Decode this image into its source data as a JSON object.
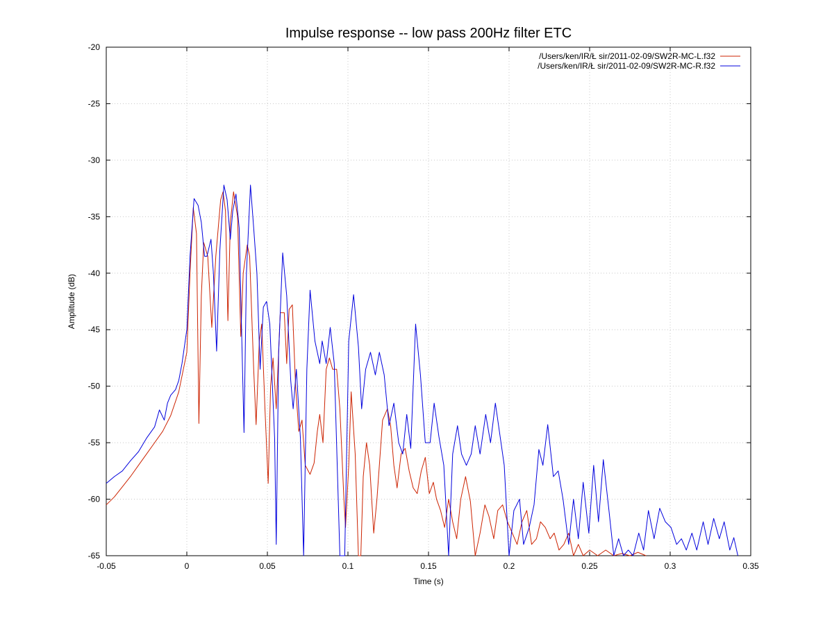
{
  "chart_data": {
    "type": "line",
    "title": "Impulse response -- low pass 200Hz filter ETC",
    "xlabel": "Time (s)",
    "ylabel": "Amplitude (dB)",
    "xlim": [
      -0.05,
      0.35
    ],
    "ylim": [
      -65,
      -20
    ],
    "x_ticks": [
      -0.05,
      0,
      0.05,
      0.1,
      0.15,
      0.2,
      0.25,
      0.3,
      0.35
    ],
    "x_tick_labels": [
      "-0.05",
      "0",
      "0.05",
      "0.1",
      "0.15",
      "0.2",
      "0.25",
      "0.3",
      "0.35"
    ],
    "y_ticks": [
      -20,
      -25,
      -30,
      -35,
      -40,
      -45,
      -50,
      -55,
      -60,
      -65
    ],
    "y_tick_labels": [
      "-20",
      "-25",
      "-30",
      "-35",
      "-40",
      "-45",
      "-50",
      "-55",
      "-60",
      "-65"
    ],
    "grid": true,
    "legend_position": "top-right",
    "series": [
      {
        "name": "/Users/ken/IR/Ł     sir/2011-02-09/SW2R-MC-L.f32",
        "color": "#cc2200",
        "points": [
          [
            -0.05,
            -60.5
          ],
          [
            -0.045,
            -59.8
          ],
          [
            -0.04,
            -58.9
          ],
          [
            -0.035,
            -58.0
          ],
          [
            -0.03,
            -57.0
          ],
          [
            -0.025,
            -56.0
          ],
          [
            -0.02,
            -55.0
          ],
          [
            -0.015,
            -54.0
          ],
          [
            -0.01,
            -52.6
          ],
          [
            -0.005,
            -50.5
          ],
          [
            0.0,
            -47.0
          ],
          [
            0.002,
            -40.0
          ],
          [
            0.004,
            -34.2
          ],
          [
            0.006,
            -36.5
          ],
          [
            0.0075,
            -53.3
          ],
          [
            0.009,
            -42.0
          ],
          [
            0.0105,
            -37.3
          ],
          [
            0.013,
            -38.5
          ],
          [
            0.0155,
            -44.8
          ],
          [
            0.018,
            -38.5
          ],
          [
            0.021,
            -33.5
          ],
          [
            0.0225,
            -32.8
          ],
          [
            0.024,
            -34.5
          ],
          [
            0.0255,
            -44.2
          ],
          [
            0.027,
            -35.5
          ],
          [
            0.029,
            -32.8
          ],
          [
            0.0315,
            -35.0
          ],
          [
            0.0335,
            -45.6
          ],
          [
            0.035,
            -40.0
          ],
          [
            0.0375,
            -37.5
          ],
          [
            0.039,
            -38.5
          ],
          [
            0.0415,
            -48.5
          ],
          [
            0.043,
            -53.4
          ],
          [
            0.045,
            -46.0
          ],
          [
            0.0465,
            -44.5
          ],
          [
            0.0485,
            -52.0
          ],
          [
            0.0505,
            -58.6
          ],
          [
            0.052,
            -50.0
          ],
          [
            0.0535,
            -47.5
          ],
          [
            0.0555,
            -52.0
          ],
          [
            0.058,
            -43.5
          ],
          [
            0.0605,
            -43.5
          ],
          [
            0.062,
            -48.0
          ],
          [
            0.0635,
            -43.2
          ],
          [
            0.0655,
            -42.8
          ],
          [
            0.0675,
            -50.0
          ],
          [
            0.0695,
            -54.0
          ],
          [
            0.0715,
            -53.0
          ],
          [
            0.0735,
            -57.0
          ],
          [
            0.0765,
            -57.8
          ],
          [
            0.079,
            -56.8
          ],
          [
            0.081,
            -54.0
          ],
          [
            0.0825,
            -52.5
          ],
          [
            0.0845,
            -55.0
          ],
          [
            0.0865,
            -48.5
          ],
          [
            0.0885,
            -47.5
          ],
          [
            0.0905,
            -48.5
          ],
          [
            0.093,
            -48.5
          ],
          [
            0.095,
            -52.0
          ],
          [
            0.0975,
            -60.0
          ],
          [
            0.0985,
            -62.5
          ],
          [
            0.1005,
            -57.0
          ],
          [
            0.102,
            -50.5
          ],
          [
            0.1045,
            -56.0
          ],
          [
            0.1065,
            -65.0
          ],
          [
            0.108,
            -65.0
          ],
          [
            0.1095,
            -58.0
          ],
          [
            0.1115,
            -55.0
          ],
          [
            0.1135,
            -57.0
          ],
          [
            0.116,
            -63.0
          ],
          [
            0.118,
            -60.0
          ],
          [
            0.1195,
            -57.0
          ],
          [
            0.1215,
            -53.0
          ],
          [
            0.1245,
            -52.0
          ],
          [
            0.1265,
            -53.5
          ],
          [
            0.1285,
            -57.0
          ],
          [
            0.1305,
            -59.0
          ],
          [
            0.133,
            -56.0
          ],
          [
            0.1355,
            -55.5
          ],
          [
            0.138,
            -57.5
          ],
          [
            0.1405,
            -59.0
          ],
          [
            0.143,
            -59.5
          ],
          [
            0.1455,
            -57.5
          ],
          [
            0.148,
            -56.3
          ],
          [
            0.1505,
            -59.5
          ],
          [
            0.153,
            -58.5
          ],
          [
            0.155,
            -60.0
          ],
          [
            0.1575,
            -61.0
          ],
          [
            0.16,
            -62.5
          ],
          [
            0.1625,
            -60.0
          ],
          [
            0.165,
            -62.0
          ],
          [
            0.1675,
            -63.5
          ],
          [
            0.17,
            -60.0
          ],
          [
            0.173,
            -58.0
          ],
          [
            0.176,
            -60.2
          ],
          [
            0.179,
            -65.0
          ],
          [
            0.182,
            -63.0
          ],
          [
            0.185,
            -60.5
          ],
          [
            0.1875,
            -61.5
          ],
          [
            0.1905,
            -63.5
          ],
          [
            0.193,
            -61.0
          ],
          [
            0.196,
            -60.5
          ],
          [
            0.199,
            -62.0
          ],
          [
            0.202,
            -63.0
          ],
          [
            0.205,
            -64.0
          ],
          [
            0.208,
            -62.0
          ],
          [
            0.211,
            -61.0
          ],
          [
            0.214,
            -64.0
          ],
          [
            0.217,
            -63.5
          ],
          [
            0.2195,
            -62.0
          ],
          [
            0.2225,
            -62.5
          ],
          [
            0.2255,
            -63.5
          ],
          [
            0.228,
            -63.0
          ],
          [
            0.231,
            -64.5
          ],
          [
            0.234,
            -64.0
          ],
          [
            0.237,
            -63.0
          ],
          [
            0.24,
            -65.0
          ],
          [
            0.243,
            -64.0
          ],
          [
            0.246,
            -65.0
          ],
          [
            0.25,
            -64.5
          ],
          [
            0.255,
            -65.0
          ],
          [
            0.26,
            -64.5
          ],
          [
            0.265,
            -65.0
          ],
          [
            0.27,
            -64.8
          ],
          [
            0.275,
            -65.0
          ],
          [
            0.28,
            -64.7
          ],
          [
            0.285,
            -65.0
          ]
        ]
      },
      {
        "name": "/Users/ken/IR/Ł     sir/2011-02-09/SW2R-MC-R.f32",
        "color": "#0000dd",
        "points": [
          [
            -0.05,
            -58.6
          ],
          [
            -0.045,
            -58.0
          ],
          [
            -0.04,
            -57.5
          ],
          [
            -0.035,
            -56.6
          ],
          [
            -0.03,
            -55.8
          ],
          [
            -0.025,
            -54.6
          ],
          [
            -0.02,
            -53.6
          ],
          [
            -0.017,
            -52.1
          ],
          [
            -0.014,
            -53.0
          ],
          [
            -0.012,
            -51.5
          ],
          [
            -0.01,
            -50.8
          ],
          [
            -0.007,
            -50.3
          ],
          [
            -0.005,
            -49.5
          ],
          [
            -0.003,
            -48.0
          ],
          [
            0.0,
            -45.0
          ],
          [
            0.002,
            -38.5
          ],
          [
            0.0045,
            -33.4
          ],
          [
            0.007,
            -34.0
          ],
          [
            0.009,
            -35.5
          ],
          [
            0.011,
            -38.5
          ],
          [
            0.0125,
            -38.5
          ],
          [
            0.015,
            -37.0
          ],
          [
            0.0165,
            -40.0
          ],
          [
            0.0185,
            -46.9
          ],
          [
            0.0205,
            -38.0
          ],
          [
            0.023,
            -32.2
          ],
          [
            0.025,
            -33.5
          ],
          [
            0.027,
            -37.0
          ],
          [
            0.0285,
            -34.5
          ],
          [
            0.0305,
            -33.0
          ],
          [
            0.0325,
            -36.0
          ],
          [
            0.0355,
            -54.1
          ],
          [
            0.037,
            -40.0
          ],
          [
            0.0395,
            -32.2
          ],
          [
            0.0415,
            -36.0
          ],
          [
            0.0435,
            -40.0
          ],
          [
            0.0455,
            -48.5
          ],
          [
            0.0475,
            -43.0
          ],
          [
            0.0495,
            -42.5
          ],
          [
            0.0515,
            -44.5
          ],
          [
            0.0545,
            -54.6
          ],
          [
            0.0555,
            -64.0
          ],
          [
            0.057,
            -47.0
          ],
          [
            0.0595,
            -38.2
          ],
          [
            0.062,
            -42.0
          ],
          [
            0.0645,
            -49.5
          ],
          [
            0.066,
            -52.0
          ],
          [
            0.068,
            -48.5
          ],
          [
            0.0705,
            -54.6
          ],
          [
            0.0725,
            -65.0
          ],
          [
            0.0745,
            -48.5
          ],
          [
            0.0765,
            -41.5
          ],
          [
            0.0795,
            -46.0
          ],
          [
            0.0825,
            -48.0
          ],
          [
            0.084,
            -46.0
          ],
          [
            0.0865,
            -48.0
          ],
          [
            0.089,
            -44.8
          ],
          [
            0.0915,
            -48.0
          ],
          [
            0.095,
            -65.0
          ],
          [
            0.098,
            -65.0
          ],
          [
            0.1005,
            -46.0
          ],
          [
            0.1035,
            -41.9
          ],
          [
            0.1065,
            -46.5
          ],
          [
            0.1085,
            -52.0
          ],
          [
            0.111,
            -48.5
          ],
          [
            0.114,
            -47.0
          ],
          [
            0.117,
            -49.0
          ],
          [
            0.1195,
            -47.0
          ],
          [
            0.1225,
            -49.0
          ],
          [
            0.1255,
            -53.5
          ],
          [
            0.1285,
            -51.5
          ],
          [
            0.1315,
            -55.0
          ],
          [
            0.134,
            -56.0
          ],
          [
            0.1365,
            -52.5
          ],
          [
            0.139,
            -55.5
          ],
          [
            0.142,
            -44.5
          ],
          [
            0.145,
            -49.0
          ],
          [
            0.148,
            -55.0
          ],
          [
            0.151,
            -55.0
          ],
          [
            0.1535,
            -51.5
          ],
          [
            0.1565,
            -54.5
          ],
          [
            0.1595,
            -57.0
          ],
          [
            0.1625,
            -65.0
          ],
          [
            0.165,
            -56.0
          ],
          [
            0.168,
            -53.5
          ],
          [
            0.1705,
            -56.0
          ],
          [
            0.1735,
            -57.0
          ],
          [
            0.1765,
            -56.0
          ],
          [
            0.179,
            -53.5
          ],
          [
            0.182,
            -56.0
          ],
          [
            0.1855,
            -52.5
          ],
          [
            0.1885,
            -55.0
          ],
          [
            0.1915,
            -51.5
          ],
          [
            0.194,
            -54.0
          ],
          [
            0.197,
            -57.0
          ],
          [
            0.2,
            -65.0
          ],
          [
            0.203,
            -61.0
          ],
          [
            0.2065,
            -60.0
          ],
          [
            0.209,
            -64.0
          ],
          [
            0.2125,
            -62.5
          ],
          [
            0.2155,
            -60.5
          ],
          [
            0.2185,
            -55.6
          ],
          [
            0.221,
            -57.0
          ],
          [
            0.224,
            -53.4
          ],
          [
            0.2275,
            -58.0
          ],
          [
            0.2305,
            -57.5
          ],
          [
            0.2335,
            -60.0
          ],
          [
            0.237,
            -64.0
          ],
          [
            0.24,
            -60.0
          ],
          [
            0.243,
            -63.5
          ],
          [
            0.246,
            -58.5
          ],
          [
            0.2495,
            -63.0
          ],
          [
            0.2525,
            -57.0
          ],
          [
            0.2555,
            -62.0
          ],
          [
            0.2585,
            -56.5
          ],
          [
            0.262,
            -61.0
          ],
          [
            0.265,
            -65.0
          ],
          [
            0.268,
            -63.5
          ],
          [
            0.271,
            -65.0
          ],
          [
            0.274,
            -64.5
          ],
          [
            0.277,
            -65.0
          ],
          [
            0.2805,
            -63.0
          ],
          [
            0.2835,
            -64.5
          ],
          [
            0.2865,
            -61.0
          ],
          [
            0.29,
            -63.5
          ],
          [
            0.2935,
            -60.8
          ],
          [
            0.297,
            -62.0
          ],
          [
            0.3005,
            -62.5
          ],
          [
            0.304,
            -64.0
          ],
          [
            0.307,
            -63.5
          ],
          [
            0.31,
            -64.5
          ],
          [
            0.3135,
            -63.0
          ],
          [
            0.3165,
            -64.5
          ],
          [
            0.3205,
            -62.0
          ],
          [
            0.3235,
            -64.0
          ],
          [
            0.327,
            -61.7
          ],
          [
            0.3305,
            -63.5
          ],
          [
            0.3335,
            -62.0
          ],
          [
            0.337,
            -64.5
          ],
          [
            0.3395,
            -63.4
          ],
          [
            0.342,
            -65.0
          ]
        ]
      }
    ]
  }
}
